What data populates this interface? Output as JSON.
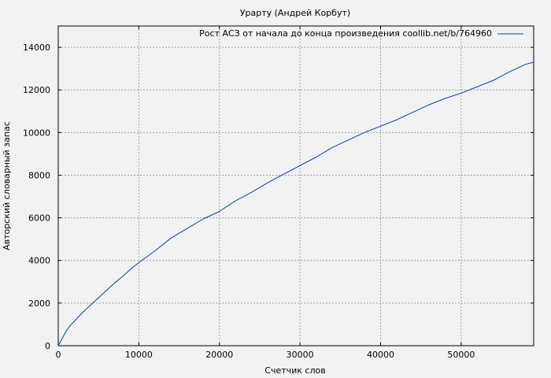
{
  "chart_data": {
    "type": "line",
    "title": "Урарту (Андрей Корбут)",
    "xlabel": "Счетчик слов",
    "ylabel": "Авторский словарный запас",
    "xlim": [
      0,
      59000
    ],
    "ylim": [
      0,
      15000
    ],
    "x_ticks": [
      "0",
      "10000",
      "20000",
      "30000",
      "40000",
      "50000"
    ],
    "y_ticks": [
      "0",
      "2000",
      "4000",
      "6000",
      "8000",
      "10000",
      "12000",
      "14000"
    ],
    "grid": true,
    "legend_position": "top-right",
    "series": [
      {
        "name": "Рост АСЗ от начала до конца произведения coollib.net/b/764960",
        "color": "#0a3d9e",
        "x": [
          0,
          500,
          1000,
          1500,
          2000,
          3000,
          4000,
          5000,
          6000,
          7000,
          8000,
          9000,
          10000,
          12000,
          14000,
          16000,
          18000,
          20000,
          22000,
          24000,
          26000,
          28000,
          30000,
          32000,
          34000,
          36000,
          38000,
          40000,
          42000,
          44000,
          46000,
          48000,
          50000,
          52000,
          54000,
          56000,
          58000,
          59000
        ],
        "y": [
          0,
          350,
          700,
          950,
          1150,
          1550,
          1900,
          2250,
          2600,
          2950,
          3250,
          3600,
          3900,
          4450,
          5050,
          5500,
          5950,
          6300,
          6800,
          7200,
          7650,
          8050,
          8450,
          8850,
          9300,
          9650,
          10000,
          10300,
          10600,
          10950,
          11300,
          11600,
          11850,
          12150,
          12450,
          12850,
          13200,
          13300
        ]
      }
    ]
  }
}
